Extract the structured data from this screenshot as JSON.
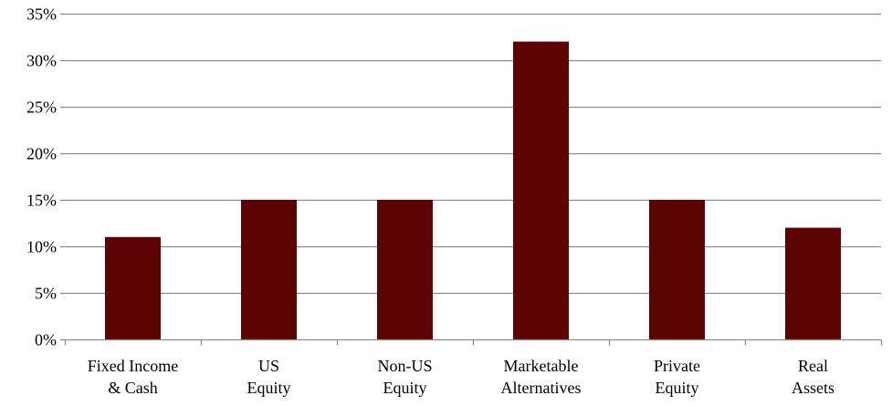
{
  "chart_data": {
    "type": "bar",
    "title": "",
    "xlabel": "",
    "ylabel": "",
    "categories": [
      [
        "Fixed Income",
        "& Cash"
      ],
      [
        "US",
        "Equity"
      ],
      [
        "Non-US",
        "Equity"
      ],
      [
        "Marketable",
        "Alternatives"
      ],
      [
        "Private",
        "Equity"
      ],
      [
        "Real",
        "Assets"
      ]
    ],
    "values": [
      11,
      15,
      15,
      32,
      15,
      12
    ],
    "ylim": [
      0,
      35
    ],
    "yticks": [
      0,
      5,
      10,
      15,
      20,
      25,
      30,
      35
    ],
    "ytick_labels": [
      "0%",
      "5%",
      "10%",
      "15%",
      "20%",
      "25%",
      "30%",
      "35%"
    ],
    "grid": true,
    "legend": "none",
    "bar_color": "#5c0404",
    "grid_color": "#8c8c8c"
  }
}
